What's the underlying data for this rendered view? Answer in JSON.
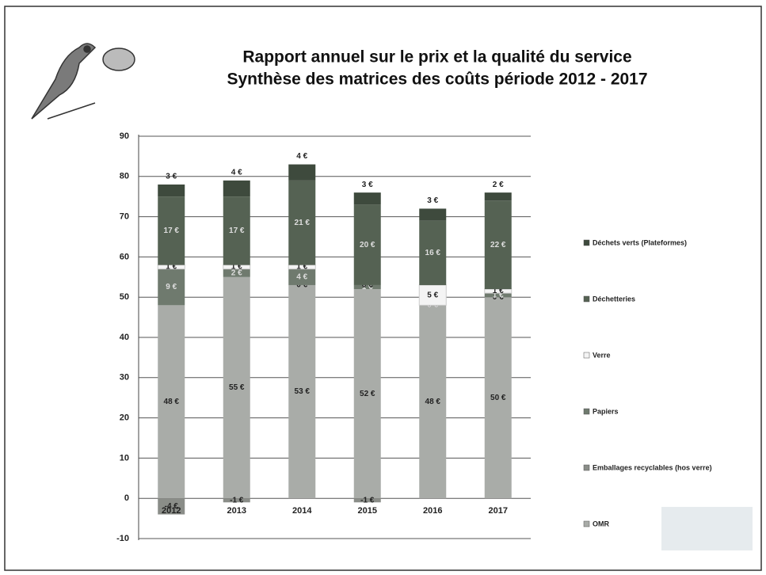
{
  "chart_data": {
    "type": "stacked_bar",
    "title": "Rapport annuel sur le prix et la qualité du service",
    "subtitle": "Synthèse des matrices des coûts période 2012 - 2017",
    "categories": [
      "2012",
      "2013",
      "2014",
      "2015",
      "2016",
      "2017"
    ],
    "series": [
      {
        "name": "OMR",
        "color": "#a9aca8",
        "values": [
          48,
          55,
          53,
          52,
          48,
          50
        ],
        "value_labels": [
          "48 €",
          "55 €",
          "53 €",
          "52 €",
          "48 €",
          "50 €"
        ]
      },
      {
        "name": "Emballages recyclables (hos verre)",
        "color": "#8a8d88",
        "values": [
          -4,
          -1,
          0,
          -1,
          0,
          0
        ],
        "value_labels": [
          "-4 €",
          "-1 €",
          "0 €",
          "-1 €",
          "0 €",
          "0 €"
        ]
      },
      {
        "name": "Papiers",
        "color": "#6f7a6e",
        "values": [
          9,
          2,
          4,
          1,
          0,
          1
        ],
        "value_labels": [
          "9 €",
          "2 €",
          "4 €",
          "1 €",
          "0 €",
          "1 €"
        ]
      },
      {
        "name": "Verre",
        "color": "#f4f4f4",
        "values": [
          1,
          1,
          1,
          0,
          5,
          1
        ],
        "value_labels": [
          "1 €",
          "1 €",
          "1 €",
          "0 €",
          "5 €",
          "1 €"
        ]
      },
      {
        "name": "Déchetteries",
        "color": "#556253",
        "values": [
          17,
          17,
          21,
          20,
          16,
          22
        ],
        "value_labels": [
          "17 €",
          "17 €",
          "21 €",
          "20 €",
          "16 €",
          "22 €"
        ]
      },
      {
        "name": "Déchets verts (Plateformes)",
        "color": "#3e4a3d",
        "values": [
          3,
          4,
          4,
          3,
          3,
          2
        ],
        "value_labels": [
          "3 €",
          "4 €",
          "4 €",
          "3 €",
          "3 €",
          "2 €"
        ]
      }
    ],
    "ylim": [
      -10,
      90
    ],
    "yticks": [
      -10,
      0,
      10,
      20,
      30,
      40,
      50,
      60,
      70,
      80,
      90
    ],
    "grid": true,
    "legend": "right"
  }
}
